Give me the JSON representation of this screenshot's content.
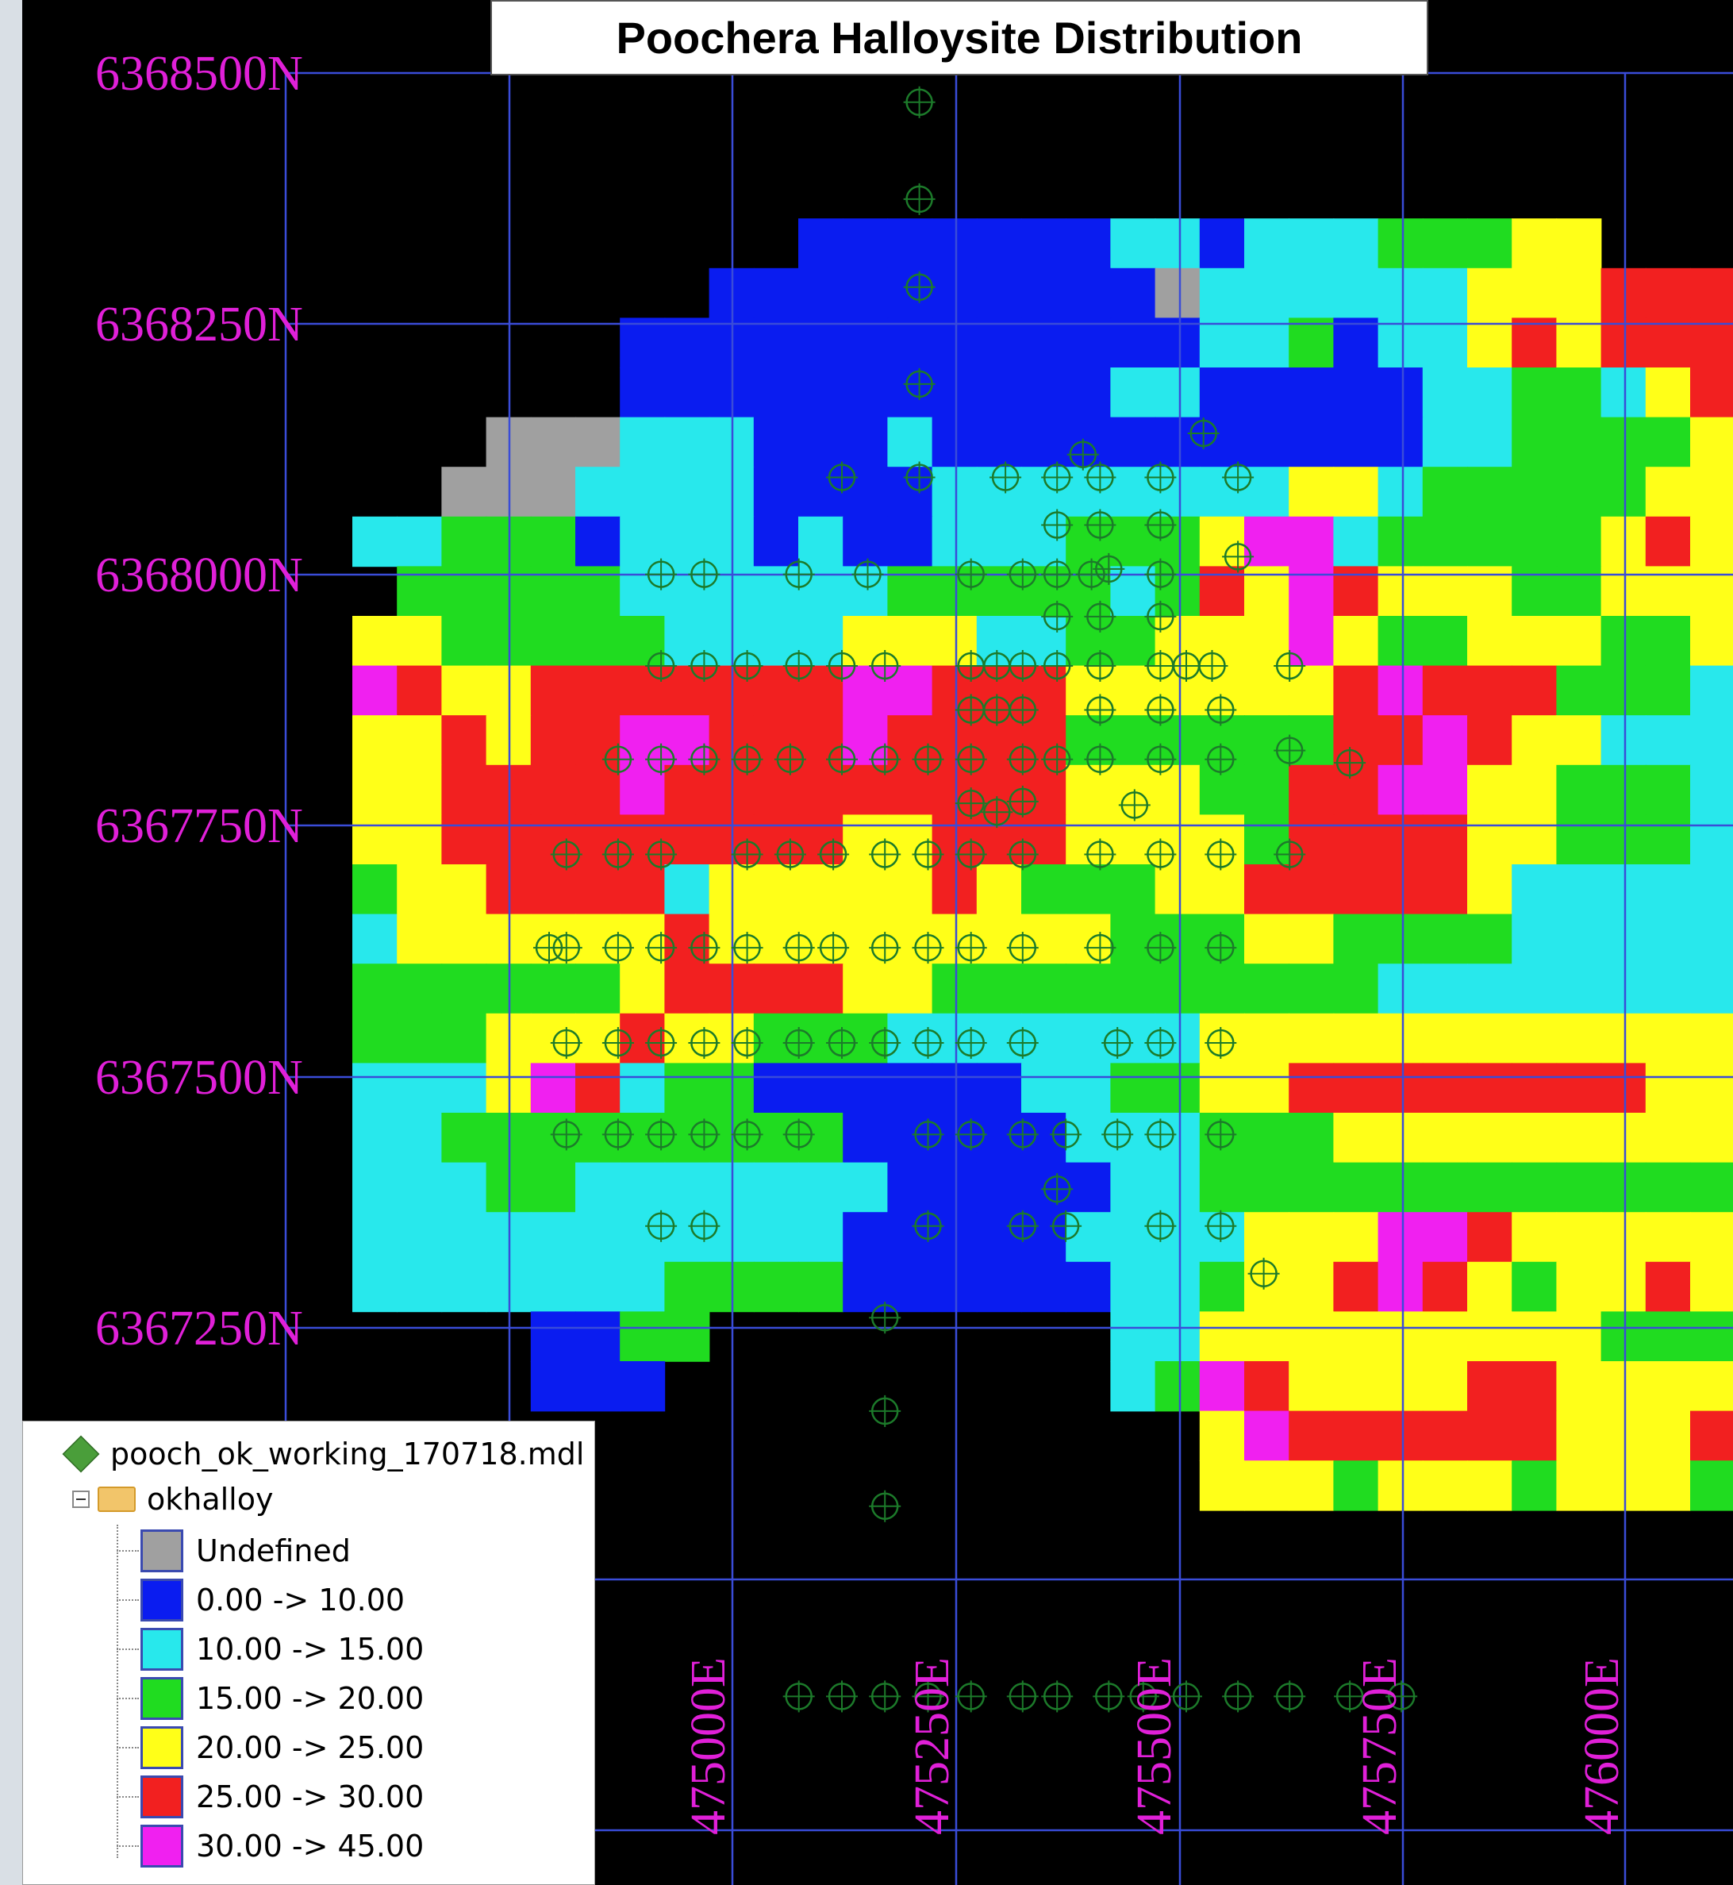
{
  "title": "Poochera Halloysite Distribution",
  "northings": [
    "6368500N",
    "6368250N",
    "6368000N",
    "6367750N",
    "6367500N",
    "6367250N"
  ],
  "eastings": [
    "475000E",
    "475250E",
    "475500E",
    "475750E",
    "476000E"
  ],
  "legend": {
    "model": "pooch_ok_working_170718.mdl",
    "folder": "okhalloy",
    "classes": [
      {
        "label": "Undefined",
        "color": "#a0a0a0"
      },
      {
        "label": "0.00 -> 10.00",
        "color": "#0a1cf0"
      },
      {
        "label": "10.00 -> 15.00",
        "color": "#28e8ec"
      },
      {
        "label": "15.00 -> 20.00",
        "color": "#20dc20"
      },
      {
        "label": "20.00 -> 25.00",
        "color": "#ffff18"
      },
      {
        "label": "25.00 -> 30.00",
        "color": "#f22020"
      },
      {
        "label": "30.00 -> 45.00",
        "color": "#f020f0"
      }
    ]
  },
  "colors": {
    "background": "#000000",
    "grid": "#3a4cd8",
    "labels": "#e020d8",
    "drillhole_marker": "#1c7a2a"
  },
  "block_model_rows": [
    "......................................",
    "......................................",
    "..........BBBBBBBCCBCCCGGGYY..........",
    "........BBBBBBBBBBUCCCCCCYYYRRR.......",
    "......BBBBBBBBBBBBBCCGBCCYRYRRRRR.....",
    "......BBBBBBBBBBBCCBBBBBCCGGCYRRRRR...",
    "...UUUCCCBBBCBBBBBBBBBBBCCGGGGYYYYYY..",
    "..UUUCCCCBBBBCCCCCCCCYYCGGGGGYYRYYGGG.",
    "CCGGGBCCCBCBBCCCGGGYMMCGGGGGYRYYYGGG..",
    ".GGGGGCCCCCCGGGGGCGRYMRYYYGGYYYYGGGG..",
    "YYGGGGGCCCCYYYCCGGYYYMYGGYYYGGYYYYGG..",
    "MRYYRRRRRRRMMRRRYYYYYYRMRRRGGGCCCCCCC",
    "YYRYRRMMRRRMRRRRGGGGGGRRMRYYCCCCCCCCC",
    "YYRRRRMRRRRRRRRRYYYGGRRMMYYGGGCCCCCC.",
    "YYRRRRRRRRRYYRRRYYYYGRRRRYYGGGCCCC...",
    "GYYRRRRCYYYYYRYGGGYYRRRRRYCCCCCCCCB.",
    "CYYYYYYRYYYYYYYYYGGGYYGGGGCCCCCCC.C..",
    "GGGGGGYRRRRYYGGGGGGGGGGCCCCCCCCCC....",
    "GGGYYYRYYGGGCCCCCCCYYYYYYYYYYYYYYY...",
    "CCCYMRCGGBBBBBBCCGGYYRRRRRRRRYYYYYY..",
    "CCGGGGGGGGGBBBBBCCCGGGYYYYYYYYYRRRRM..",
    "CCCGGCCCCCCCBBBBBCCGGGGGGGGGGGGYYRRRY..",
    "CCCCCCCCCCCBBBBBCCCCYYYMMRYYYYYYYYRRY..",
    "CCCCCCCGGGGBBBBBBCCGYYRMRYGYYRYYYYYYY..",
    "....BBGG.........CCYYYYYYYYYGGGYYYYY...",
    "....BBB..........CGMRYYYYRRYYYYYYYYYY..",
    "...................YMRRRRRRYYYRRRYYRY..",
    "...................YYYGYYYGYYYGYYYYY..."
  ],
  "drillholes": [
    [
      0.36,
      0.04
    ],
    [
      0.36,
      0.095
    ],
    [
      0.36,
      0.145
    ],
    [
      0.36,
      0.2
    ],
    [
      0.27,
      0.253
    ],
    [
      0.36,
      0.253
    ],
    [
      0.46,
      0.253
    ],
    [
      0.52,
      0.253
    ],
    [
      0.55,
      0.24
    ],
    [
      0.57,
      0.253
    ],
    [
      0.64,
      0.253
    ],
    [
      0.69,
      0.228
    ],
    [
      0.73,
      0.253
    ],
    [
      0.52,
      0.28
    ],
    [
      0.57,
      0.28
    ],
    [
      0.64,
      0.28
    ],
    [
      0.06,
      0.308
    ],
    [
      0.11,
      0.308
    ],
    [
      0.22,
      0.308
    ],
    [
      0.3,
      0.308
    ],
    [
      0.42,
      0.308
    ],
    [
      0.48,
      0.308
    ],
    [
      0.52,
      0.308
    ],
    [
      0.56,
      0.308
    ],
    [
      0.58,
      0.305
    ],
    [
      0.64,
      0.308
    ],
    [
      0.73,
      0.298
    ],
    [
      0.52,
      0.332
    ],
    [
      0.57,
      0.332
    ],
    [
      0.64,
      0.332
    ],
    [
      0.06,
      0.36
    ],
    [
      0.11,
      0.36
    ],
    [
      0.16,
      0.36
    ],
    [
      0.22,
      0.36
    ],
    [
      0.27,
      0.36
    ],
    [
      0.32,
      0.36
    ],
    [
      0.42,
      0.36
    ],
    [
      0.45,
      0.36
    ],
    [
      0.48,
      0.36
    ],
    [
      0.52,
      0.36
    ],
    [
      0.57,
      0.36
    ],
    [
      0.64,
      0.36
    ],
    [
      0.67,
      0.36
    ],
    [
      0.7,
      0.36
    ],
    [
      0.79,
      0.36
    ],
    [
      0.42,
      0.385
    ],
    [
      0.45,
      0.385
    ],
    [
      0.48,
      0.385
    ],
    [
      0.57,
      0.385
    ],
    [
      0.64,
      0.385
    ],
    [
      0.71,
      0.385
    ],
    [
      0.01,
      0.413
    ],
    [
      0.06,
      0.413
    ],
    [
      0.11,
      0.413
    ],
    [
      0.16,
      0.413
    ],
    [
      0.21,
      0.413
    ],
    [
      0.27,
      0.413
    ],
    [
      0.32,
      0.413
    ],
    [
      0.37,
      0.413
    ],
    [
      0.42,
      0.413
    ],
    [
      0.48,
      0.413
    ],
    [
      0.52,
      0.413
    ],
    [
      0.57,
      0.413
    ],
    [
      0.64,
      0.413
    ],
    [
      0.71,
      0.413
    ],
    [
      0.79,
      0.408
    ],
    [
      0.86,
      0.415
    ],
    [
      0.42,
      0.438
    ],
    [
      0.45,
      0.443
    ],
    [
      0.48,
      0.437
    ],
    [
      0.61,
      0.439
    ],
    [
      -0.05,
      0.467
    ],
    [
      0.01,
      0.467
    ],
    [
      0.06,
      0.467
    ],
    [
      0.16,
      0.467
    ],
    [
      0.21,
      0.467
    ],
    [
      0.26,
      0.467
    ],
    [
      0.32,
      0.467
    ],
    [
      0.37,
      0.467
    ],
    [
      0.42,
      0.467
    ],
    [
      0.48,
      0.467
    ],
    [
      0.57,
      0.467
    ],
    [
      0.64,
      0.467
    ],
    [
      0.71,
      0.467
    ],
    [
      0.79,
      0.467
    ],
    [
      -0.07,
      0.52
    ],
    [
      -0.05,
      0.52
    ],
    [
      0.01,
      0.52
    ],
    [
      0.06,
      0.52
    ],
    [
      0.11,
      0.52
    ],
    [
      0.16,
      0.52
    ],
    [
      0.22,
      0.52
    ],
    [
      0.26,
      0.52
    ],
    [
      0.32,
      0.52
    ],
    [
      0.37,
      0.52
    ],
    [
      0.42,
      0.52
    ],
    [
      0.48,
      0.52
    ],
    [
      0.57,
      0.52
    ],
    [
      0.64,
      0.52
    ],
    [
      0.71,
      0.52
    ],
    [
      -0.05,
      0.574
    ],
    [
      0.01,
      0.574
    ],
    [
      0.06,
      0.574
    ],
    [
      0.11,
      0.574
    ],
    [
      0.16,
      0.574
    ],
    [
      0.22,
      0.574
    ],
    [
      0.27,
      0.574
    ],
    [
      0.32,
      0.574
    ],
    [
      0.37,
      0.574
    ],
    [
      0.42,
      0.574
    ],
    [
      0.48,
      0.574
    ],
    [
      0.59,
      0.574
    ],
    [
      0.64,
      0.574
    ],
    [
      0.71,
      0.574
    ],
    [
      -0.05,
      0.626
    ],
    [
      0.01,
      0.626
    ],
    [
      0.06,
      0.626
    ],
    [
      0.11,
      0.626
    ],
    [
      0.16,
      0.626
    ],
    [
      0.22,
      0.626
    ],
    [
      0.37,
      0.626
    ],
    [
      0.42,
      0.626
    ],
    [
      0.48,
      0.626
    ],
    [
      0.53,
      0.626
    ],
    [
      0.59,
      0.626
    ],
    [
      0.64,
      0.626
    ],
    [
      0.71,
      0.626
    ],
    [
      0.06,
      0.678
    ],
    [
      0.11,
      0.678
    ],
    [
      0.37,
      0.678
    ],
    [
      0.48,
      0.678
    ],
    [
      0.52,
      0.657
    ],
    [
      0.53,
      0.678
    ],
    [
      0.64,
      0.678
    ],
    [
      0.71,
      0.678
    ],
    [
      0.76,
      0.705
    ],
    [
      0.32,
      0.73
    ],
    [
      0.32,
      0.783
    ],
    [
      0.32,
      0.837
    ],
    [
      0.22,
      0.945
    ],
    [
      0.27,
      0.945
    ],
    [
      0.32,
      0.945
    ],
    [
      0.37,
      0.945
    ],
    [
      0.42,
      0.945
    ],
    [
      0.48,
      0.945
    ],
    [
      0.52,
      0.945
    ],
    [
      0.58,
      0.945
    ],
    [
      0.62,
      0.945
    ],
    [
      0.67,
      0.945
    ],
    [
      0.73,
      0.945
    ],
    [
      0.79,
      0.945
    ],
    [
      0.86,
      0.945
    ],
    [
      0.92,
      0.945
    ]
  ]
}
